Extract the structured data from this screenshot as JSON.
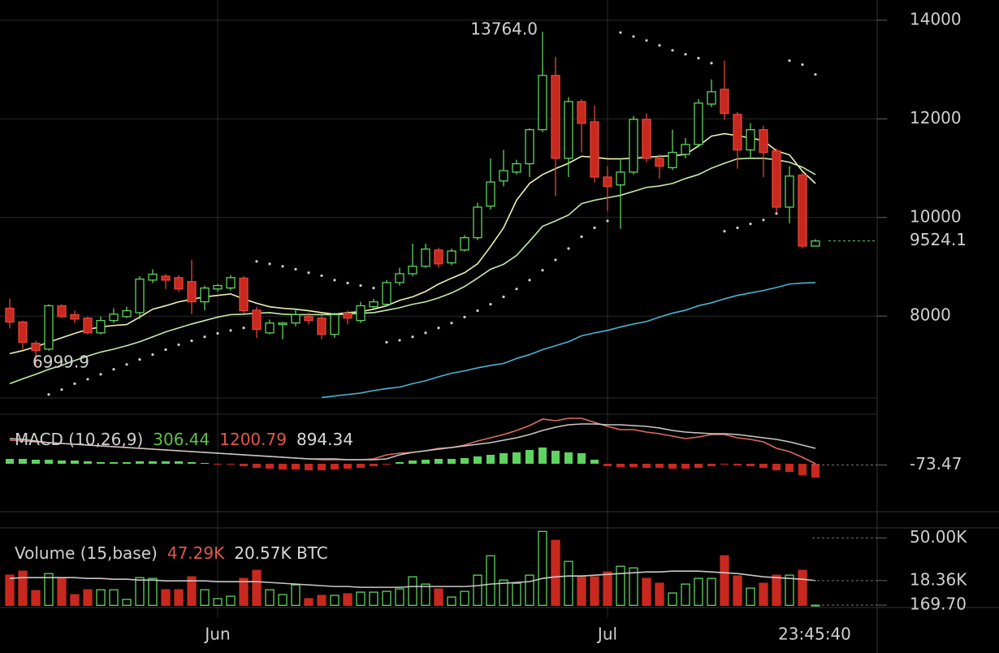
{
  "chart_data": {
    "type": "candlestick",
    "time_label": "23:45:40",
    "grid": true,
    "up_color": "#5fd35f",
    "down_color": "#c8281e",
    "categories": [
      null,
      null,
      null,
      null,
      null,
      null,
      null,
      null,
      null,
      null,
      null,
      null,
      null,
      null,
      null,
      null,
      "Jun",
      null,
      null,
      null,
      null,
      null,
      null,
      null,
      null,
      null,
      null,
      null,
      null,
      null,
      null,
      null,
      null,
      null,
      null,
      null,
      null,
      null,
      null,
      null,
      null,
      null,
      null,
      null,
      null,
      null,
      "Jul",
      null,
      null,
      null,
      null,
      null,
      null,
      null,
      null,
      null,
      null,
      null,
      null,
      null,
      null,
      null,
      null
    ],
    "price": {
      "ylim": [
        6340,
        14410
      ],
      "yticks": [
        8000,
        10000,
        12000,
        14000
      ],
      "high_label": "13764.0",
      "low_label": "6999.9",
      "ohlc": [
        [
          8160,
          8350,
          7750,
          7880
        ],
        [
          7880,
          7910,
          7330,
          7470
        ],
        [
          7450,
          7500,
          6999.9,
          7300
        ],
        [
          7330,
          8240,
          7300,
          8210
        ],
        [
          8210,
          8240,
          7960,
          7990
        ],
        [
          8030,
          8110,
          7860,
          7940
        ],
        [
          7960,
          7990,
          7630,
          7660
        ],
        [
          7660,
          7990,
          7630,
          7910
        ],
        [
          7910,
          8160,
          7860,
          8040
        ],
        [
          7990,
          8190,
          7960,
          8110
        ],
        [
          8070,
          8810,
          7940,
          8750
        ],
        [
          8730,
          8950,
          8670,
          8850
        ],
        [
          8810,
          8850,
          8550,
          8730
        ],
        [
          8780,
          8830,
          8490,
          8550
        ],
        [
          8700,
          9140,
          8040,
          8290
        ],
        [
          8290,
          8620,
          8120,
          8570
        ],
        [
          8550,
          8650,
          8490,
          8620
        ],
        [
          8570,
          8830,
          8520,
          8780
        ],
        [
          8770,
          8810,
          8060,
          8110
        ],
        [
          8120,
          8190,
          7560,
          7730
        ],
        [
          7660,
          7930,
          7630,
          7860
        ],
        [
          7830,
          7880,
          7530,
          7860
        ],
        [
          7860,
          8160,
          7790,
          8030
        ],
        [
          7990,
          8070,
          7830,
          7910
        ],
        [
          7960,
          8030,
          7530,
          7630
        ],
        [
          7630,
          8070,
          7560,
          8030
        ],
        [
          8060,
          8110,
          7830,
          7960
        ],
        [
          7910,
          8290,
          7860,
          8210
        ],
        [
          8190,
          8350,
          8120,
          8290
        ],
        [
          8240,
          8730,
          8190,
          8680
        ],
        [
          8680,
          8980,
          8620,
          8860
        ],
        [
          8860,
          9470,
          8810,
          9010
        ],
        [
          9010,
          9470,
          8980,
          9360
        ],
        [
          9340,
          9390,
          8980,
          9060
        ],
        [
          9080,
          9370,
          9030,
          9320
        ],
        [
          9340,
          9640,
          9310,
          9590
        ],
        [
          9590,
          10300,
          9540,
          10210
        ],
        [
          10230,
          11200,
          10160,
          10720
        ],
        [
          10740,
          11370,
          10630,
          10950
        ],
        [
          10920,
          11170,
          10870,
          11090
        ],
        [
          11090,
          11810,
          10820,
          11780
        ],
        [
          11780,
          13764,
          11730,
          12880
        ],
        [
          12880,
          13260,
          10430,
          11200
        ],
        [
          11200,
          12440,
          10820,
          12350
        ],
        [
          12350,
          12400,
          11320,
          11910
        ],
        [
          11940,
          12270,
          10710,
          10820
        ],
        [
          10820,
          11040,
          10130,
          10630
        ],
        [
          10660,
          11200,
          9770,
          10920
        ],
        [
          10920,
          12060,
          10870,
          11990
        ],
        [
          11990,
          12110,
          11120,
          11200
        ],
        [
          11200,
          11280,
          10790,
          11040
        ],
        [
          11010,
          11780,
          10960,
          11320
        ],
        [
          11280,
          11610,
          11200,
          11480
        ],
        [
          11480,
          12400,
          11420,
          12320
        ],
        [
          12300,
          12800,
          12240,
          12550
        ],
        [
          12600,
          13180,
          11980,
          12110
        ],
        [
          12090,
          12140,
          10990,
          11370
        ],
        [
          11370,
          11910,
          11200,
          11780
        ],
        [
          11780,
          11860,
          10820,
          11320
        ],
        [
          11350,
          11400,
          10100,
          10210
        ],
        [
          10210,
          11040,
          9880,
          10840
        ],
        [
          10860,
          10910,
          9370,
          9420
        ],
        [
          9420,
          9560,
          9420,
          9524.1
        ]
      ],
      "series": [
        {
          "color": "#eef2b4",
          "values": [
            7240,
            7300,
            7380,
            7470,
            7560,
            7650,
            7730,
            7780,
            7810,
            7830,
            7980,
            8140,
            8210,
            8290,
            8340,
            8390,
            8420,
            8450,
            8350,
            8260,
            8190,
            8160,
            8140,
            8110,
            8070,
            8040,
            8070,
            8090,
            8140,
            8210,
            8320,
            8390,
            8500,
            8650,
            8770,
            8880,
            9060,
            9410,
            9790,
            10350,
            10690,
            10870,
            10990,
            11100,
            11240,
            11220,
            11190,
            11190,
            11200,
            11220,
            11240,
            11250,
            11280,
            11450,
            11650,
            11700,
            11660,
            11610,
            11560,
            11350,
            11270,
            10940,
            10690
          ]
        },
        {
          "color": "#c3ecab",
          "values": [
            6630,
            6730,
            6820,
            6920,
            7000,
            7100,
            7190,
            7270,
            7330,
            7400,
            7480,
            7580,
            7680,
            7760,
            7840,
            7910,
            7980,
            8030,
            8040,
            8060,
            8070,
            8040,
            8030,
            8030,
            8030,
            8030,
            8040,
            8060,
            8070,
            8120,
            8170,
            8240,
            8290,
            8370,
            8470,
            8600,
            8770,
            8950,
            9050,
            9230,
            9520,
            9820,
            9930,
            10050,
            10280,
            10350,
            10400,
            10450,
            10530,
            10610,
            10640,
            10690,
            10790,
            10870,
            11000,
            11100,
            11190,
            11200,
            11200,
            11170,
            11120,
            11020,
            10870
          ]
        },
        {
          "color": "#4ab3d3",
          "values": [
            null,
            null,
            null,
            null,
            null,
            null,
            null,
            null,
            null,
            null,
            null,
            null,
            null,
            null,
            null,
            null,
            null,
            null,
            null,
            null,
            null,
            null,
            null,
            null,
            6350,
            6380,
            6410,
            6440,
            6490,
            6530,
            6560,
            6630,
            6690,
            6770,
            6840,
            6890,
            6950,
            7000,
            7040,
            7140,
            7220,
            7320,
            7400,
            7480,
            7600,
            7660,
            7710,
            7780,
            7840,
            7890,
            7980,
            8060,
            8120,
            8210,
            8270,
            8350,
            8420,
            8470,
            8520,
            8580,
            8650,
            8670,
            8680
          ]
        }
      ],
      "sar": {
        "color": "#d0d0d0",
        "values": [
          null,
          null,
          null,
          6410,
          6510,
          6630,
          6720,
          6820,
          6920,
          7020,
          7120,
          7220,
          7320,
          7420,
          7500,
          7580,
          7650,
          7710,
          7760,
          9110,
          9060,
          9010,
          8950,
          8880,
          8820,
          8730,
          8670,
          8620,
          8570,
          7470,
          7510,
          7580,
          7660,
          7760,
          7860,
          7980,
          8110,
          8240,
          8390,
          8550,
          8730,
          8930,
          9140,
          9370,
          9610,
          9790,
          9930,
          13750,
          13670,
          13590,
          13490,
          13390,
          13310,
          13230,
          13130,
          9720,
          9790,
          9870,
          9950,
          10080,
          13180,
          13100,
          12900
        ]
      }
    },
    "macd": {
      "name": "MACD (10,26,9)",
      "readings": [
        306.44,
        1200.79,
        894.34
      ],
      "reading_colors": [
        "#5cc24a",
        "#e0584a",
        "#d8d8d8"
      ],
      "ylim": [
        -2950,
        3050
      ],
      "yticks": [
        -73.47
      ],
      "series": [
        {
          "color": "#e06a62",
          "values": [
            1450,
            1400,
            1350,
            1300,
            1250,
            1200,
            1150,
            1100,
            1050,
            1000,
            950,
            900,
            850,
            800,
            750,
            700,
            650,
            600,
            550,
            500,
            450,
            400,
            350,
            300,
            250,
            250,
            250,
            250,
            300,
            550,
            650,
            700,
            800,
            950,
            1000,
            1150,
            1400,
            1600,
            1800,
            2050,
            2350,
            2750,
            2650,
            2800,
            2800,
            2550,
            2300,
            2100,
            2100,
            1950,
            1850,
            1700,
            1550,
            1650,
            1800,
            1800,
            1600,
            1500,
            1350,
            950,
            750,
            400,
            0
          ]
        },
        {
          "color": "#c8c8c8",
          "values": [
            1550,
            1500,
            1400,
            1300,
            1250,
            1200,
            1150,
            1100,
            1050,
            1000,
            950,
            900,
            850,
            800,
            750,
            700,
            650,
            600,
            550,
            500,
            450,
            400,
            350,
            300,
            300,
            300,
            250,
            250,
            250,
            300,
            550,
            700,
            800,
            900,
            1000,
            1100,
            1200,
            1300,
            1450,
            1600,
            1800,
            2050,
            2250,
            2400,
            2450,
            2450,
            2400,
            2400,
            2350,
            2300,
            2200,
            2050,
            1950,
            1900,
            1850,
            1850,
            1800,
            1700,
            1600,
            1500,
            1350,
            1150,
            950
          ]
        }
      ],
      "histogram": [
        300,
        300,
        250,
        250,
        200,
        200,
        150,
        100,
        100,
        100,
        150,
        150,
        150,
        150,
        100,
        50,
        -50,
        -50,
        -150,
        -250,
        -300,
        -350,
        -350,
        -400,
        -400,
        -350,
        -300,
        -250,
        -150,
        -50,
        100,
        200,
        250,
        300,
        300,
        350,
        450,
        550,
        650,
        700,
        850,
        1000,
        800,
        700,
        650,
        250,
        -150,
        -200,
        -200,
        -250,
        -250,
        -300,
        -300,
        -250,
        -150,
        -50,
        -100,
        -150,
        -250,
        -400,
        -500,
        -700,
        -850
      ]
    },
    "volume": {
      "name": "Volume (15,base)",
      "readings": [
        "47.29K",
        "20.57K BTC"
      ],
      "reading_colors": [
        "#e0584a",
        "#d8d8d8"
      ],
      "ylim": [
        -1600,
        57400
      ],
      "yticks": [
        {
          "value": 50000,
          "label": "50.00K"
        },
        {
          "value": 18360,
          "label": "18.36K"
        },
        {
          "value": 169.7,
          "label": "169.70"
        }
      ],
      "values": [
        22380,
        25380,
        10980,
        23580,
        19980,
        7980,
        11580,
        11580,
        11580,
        4380,
        20580,
        19980,
        11580,
        11580,
        21180,
        11580,
        4980,
        6780,
        19980,
        25980,
        11580,
        7980,
        15180,
        4980,
        7380,
        7380,
        8580,
        9780,
        9780,
        10380,
        12180,
        21180,
        15780,
        12180,
        6180,
        10380,
        22380,
        36780,
        18780,
        16380,
        22380,
        54780,
        48180,
        32580,
        21180,
        21180,
        24780,
        28980,
        27780,
        19980,
        16380,
        9180,
        15780,
        19980,
        19980,
        36780,
        21780,
        12780,
        16380,
        22380,
        22380,
        25980,
        169.7
      ],
      "ma": {
        "color": "#c8c8c8",
        "values": [
          19980,
          20580,
          20580,
          20580,
          20580,
          20580,
          19980,
          19980,
          19380,
          19380,
          18780,
          18780,
          18180,
          18180,
          18180,
          18180,
          17580,
          17580,
          17580,
          17580,
          16980,
          16380,
          15780,
          15180,
          14580,
          13980,
          13980,
          13380,
          13380,
          13380,
          13380,
          13980,
          13980,
          13980,
          13980,
          13980,
          14580,
          15780,
          16380,
          16980,
          17580,
          19980,
          21180,
          21780,
          21780,
          22380,
          22980,
          23580,
          24180,
          24780,
          24780,
          25380,
          25380,
          25380,
          24780,
          24180,
          23580,
          22380,
          21180,
          20580,
          19980,
          19380,
          18360
        ]
      }
    }
  }
}
